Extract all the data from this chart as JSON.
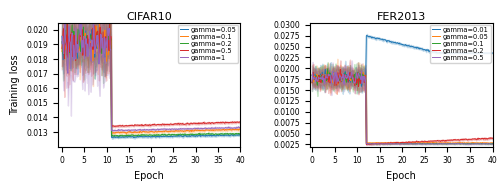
{
  "cifar10": {
    "title": "CIFAR10",
    "xlabel": "Epoch",
    "ylabel": "Training loss",
    "ylim": [
      0.012,
      0.0205
    ],
    "xlim": [
      -1,
      40
    ],
    "yticks": [
      0.013,
      0.014,
      0.015,
      0.016,
      0.017,
      0.018,
      0.019,
      0.02
    ],
    "xticks": [
      0,
      5,
      10,
      15,
      20,
      25,
      30,
      35,
      40
    ],
    "gammas": [
      0.05,
      0.1,
      0.2,
      0.5,
      1.0
    ],
    "colors": [
      "#1f77b4",
      "#ff7f0e",
      "#2ca02c",
      "#d62728",
      "#9467bd"
    ],
    "labels": [
      "gamma=0.05",
      "gamma=0.1",
      "gamma=0.2",
      "gamma=0.5",
      "gamma=1"
    ],
    "drop_epoch": 11,
    "pre_base": 0.0191,
    "pre_noise_scale": 0.0012,
    "post_bases": [
      0.01265,
      0.01295,
      0.01275,
      0.0134,
      0.0131
    ],
    "post_slopes": [
      5e-06,
      8e-06,
      5e-06,
      1e-05,
      7e-06
    ],
    "post_noise": 6e-05
  },
  "fer2013": {
    "title": "FER2013",
    "xlabel": "Epoch",
    "ylabel": "",
    "ylim": [
      0.002,
      0.0305
    ],
    "xlim": [
      -0.5,
      40
    ],
    "yticks": [
      0.0025,
      0.005,
      0.0075,
      0.01,
      0.0125,
      0.015,
      0.0175,
      0.02,
      0.0225,
      0.025,
      0.0275,
      0.03
    ],
    "xticks": [
      0,
      5,
      10,
      15,
      20,
      25,
      30,
      35,
      40
    ],
    "gammas": [
      0.01,
      0.05,
      0.1,
      0.2,
      0.5
    ],
    "colors": [
      "#1f77b4",
      "#ff7f0e",
      "#2ca02c",
      "#d62728",
      "#9467bd"
    ],
    "labels": [
      "gamma=0.01",
      "gamma=0.05",
      "gamma=0.1",
      "gamma=0.2",
      "gamma=0.5"
    ],
    "drop_epoch": 12,
    "pre_base": 0.0178,
    "pre_noise_scale": 0.002
  }
}
